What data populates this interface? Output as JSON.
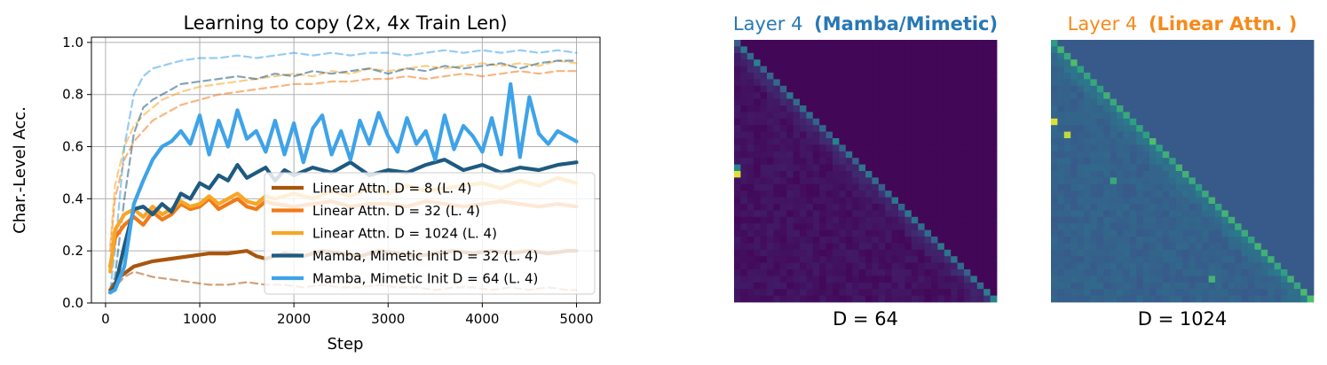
{
  "colors": {
    "linear_d8": "#a8560d",
    "linear_d32": "#f07a18",
    "linear_d1024": "#f7a626",
    "mamba_d32": "#1e5a80",
    "mamba_d64": "#3ea3e8",
    "title_mamba": "#2878b5",
    "title_linear": "#f58a1a",
    "heat_dark": "#440154",
    "heat_mid": "#31688e",
    "heat_light": "#fde725"
  },
  "chart_data": [
    {
      "type": "line",
      "title": "Learning to copy (2x, 4x Train Len)",
      "xlabel": "Step",
      "ylabel": "Char.-Level Acc.",
      "xlim": [
        -150,
        5250
      ],
      "ylim": [
        0.0,
        1.02
      ],
      "xticks": [
        0,
        1000,
        2000,
        3000,
        4000,
        5000
      ],
      "xtick_labels": [
        "0",
        "1000",
        "2000",
        "3000",
        "4000",
        "5000"
      ],
      "yticks": [
        0.0,
        0.2,
        0.4,
        0.6,
        0.8,
        1.0
      ],
      "ytick_labels": [
        "0.0",
        "0.2",
        "0.4",
        "0.6",
        "0.8",
        "1.0"
      ],
      "grid": true,
      "legend_placement": "lower-right",
      "series": [
        {
          "name": "Linear Attn. D = 8 (L. 4)",
          "style": "solid",
          "color_key": "linear_d8",
          "x": [
            50,
            150,
            300,
            500,
            700,
            900,
            1100,
            1300,
            1500,
            1600,
            1700,
            1900,
            2100,
            2300,
            2500,
            2700,
            2900,
            3100,
            3300,
            3500,
            3700,
            3900,
            4100,
            4300,
            4500,
            4700,
            4900,
            5000
          ],
          "y": [
            0.05,
            0.1,
            0.14,
            0.16,
            0.17,
            0.18,
            0.19,
            0.19,
            0.2,
            0.18,
            0.17,
            0.19,
            0.18,
            0.2,
            0.19,
            0.18,
            0.2,
            0.19,
            0.18,
            0.19,
            0.2,
            0.19,
            0.2,
            0.19,
            0.2,
            0.19,
            0.2,
            0.2
          ]
        },
        {
          "name": "Linear Attn. D = 32 (L. 4)",
          "style": "solid",
          "color_key": "linear_d32",
          "x": [
            50,
            100,
            200,
            300,
            400,
            500,
            600,
            700,
            800,
            900,
            1000,
            1100,
            1200,
            1300,
            1400,
            1500,
            1600,
            1700,
            1800,
            2000,
            2200,
            2400,
            2600,
            2800,
            3000,
            3200,
            3400,
            3600,
            3800,
            4000,
            4200,
            4400,
            4600,
            4800,
            5000
          ],
          "y": [
            0.14,
            0.25,
            0.3,
            0.33,
            0.3,
            0.35,
            0.32,
            0.34,
            0.38,
            0.36,
            0.37,
            0.4,
            0.36,
            0.38,
            0.4,
            0.37,
            0.36,
            0.39,
            0.38,
            0.37,
            0.38,
            0.39,
            0.37,
            0.38,
            0.38,
            0.37,
            0.39,
            0.38,
            0.37,
            0.38,
            0.39,
            0.38,
            0.37,
            0.38,
            0.37
          ]
        },
        {
          "name": "Linear Attn. D = 1024 (L. 4)",
          "style": "solid",
          "color_key": "linear_d1024",
          "x": [
            50,
            100,
            200,
            300,
            400,
            500,
            600,
            700,
            800,
            900,
            1000,
            1100,
            1200,
            1300,
            1400,
            1500,
            1600,
            1700,
            1800,
            2000,
            2200,
            2400,
            2600,
            2800,
            3000,
            3200,
            3400,
            3600,
            3800,
            4000,
            4200,
            4400,
            4600,
            4800,
            5000
          ],
          "y": [
            0.12,
            0.28,
            0.34,
            0.36,
            0.33,
            0.37,
            0.34,
            0.36,
            0.39,
            0.37,
            0.38,
            0.41,
            0.38,
            0.4,
            0.42,
            0.39,
            0.38,
            0.41,
            0.4,
            0.42,
            0.4,
            0.43,
            0.41,
            0.44,
            0.42,
            0.45,
            0.43,
            0.44,
            0.45,
            0.46,
            0.44,
            0.47,
            0.45,
            0.48,
            0.46
          ]
        },
        {
          "name": "Mamba, Mimetic Init D = 32 (L. 4)",
          "style": "solid",
          "color_key": "mamba_d32",
          "x": [
            50,
            100,
            200,
            300,
            400,
            500,
            600,
            700,
            800,
            900,
            1000,
            1100,
            1200,
            1300,
            1400,
            1500,
            1600,
            1700,
            1800,
            1900,
            2000,
            2200,
            2400,
            2600,
            2800,
            3000,
            3200,
            3400,
            3600,
            3800,
            4000,
            4200,
            4400,
            4600,
            4800,
            5000
          ],
          "y": [
            0.04,
            0.06,
            0.22,
            0.36,
            0.37,
            0.34,
            0.38,
            0.35,
            0.42,
            0.4,
            0.46,
            0.44,
            0.49,
            0.47,
            0.53,
            0.48,
            0.5,
            0.52,
            0.47,
            0.51,
            0.49,
            0.52,
            0.5,
            0.54,
            0.49,
            0.51,
            0.5,
            0.53,
            0.55,
            0.51,
            0.53,
            0.5,
            0.52,
            0.51,
            0.53,
            0.54
          ]
        },
        {
          "name": "Mamba, Mimetic Init D = 64 (L. 4)",
          "style": "solid",
          "color_key": "mamba_d64",
          "x": [
            50,
            100,
            200,
            300,
            400,
            500,
            600,
            700,
            800,
            900,
            1000,
            1100,
            1200,
            1300,
            1400,
            1500,
            1600,
            1700,
            1800,
            1900,
            2000,
            2100,
            2200,
            2300,
            2400,
            2500,
            2600,
            2700,
            2800,
            2900,
            3000,
            3100,
            3200,
            3300,
            3400,
            3500,
            3600,
            3700,
            3800,
            3900,
            4000,
            4100,
            4200,
            4300,
            4400,
            4500,
            4600,
            4700,
            4800,
            4900,
            5000
          ],
          "y": [
            0.04,
            0.05,
            0.14,
            0.38,
            0.47,
            0.55,
            0.6,
            0.62,
            0.66,
            0.61,
            0.72,
            0.57,
            0.7,
            0.6,
            0.74,
            0.63,
            0.66,
            0.58,
            0.7,
            0.57,
            0.69,
            0.54,
            0.67,
            0.72,
            0.57,
            0.66,
            0.55,
            0.7,
            0.61,
            0.73,
            0.64,
            0.58,
            0.71,
            0.61,
            0.66,
            0.55,
            0.72,
            0.59,
            0.68,
            0.64,
            0.58,
            0.71,
            0.57,
            0.84,
            0.56,
            0.79,
            0.65,
            0.61,
            0.66,
            0.64,
            0.62
          ]
        },
        {
          "name": "",
          "style": "dashed",
          "color_key": "linear_d8",
          "x": [
            50,
            100,
            200,
            300,
            400,
            500,
            700,
            900,
            1100,
            1300,
            1500,
            1700,
            1900,
            2100,
            2300,
            2500,
            2700,
            2900,
            3100,
            3300,
            3500,
            3700,
            3900,
            4100,
            4300,
            4500,
            4700,
            4900,
            5000
          ],
          "y": [
            0.04,
            0.06,
            0.1,
            0.12,
            0.11,
            0.1,
            0.09,
            0.08,
            0.07,
            0.07,
            0.08,
            0.07,
            0.07,
            0.06,
            0.07,
            0.06,
            0.06,
            0.07,
            0.06,
            0.06,
            0.05,
            0.06,
            0.06,
            0.05,
            0.06,
            0.05,
            0.06,
            0.05,
            0.05
          ]
        },
        {
          "name": "",
          "style": "dashed",
          "color_key": "linear_d32",
          "x": [
            50,
            100,
            200,
            300,
            400,
            500,
            600,
            800,
            1000,
            1200,
            1400,
            1600,
            1800,
            2000,
            2200,
            2400,
            2600,
            2800,
            3000,
            3200,
            3400,
            3600,
            3800,
            4000,
            4200,
            4400,
            4600,
            4800,
            5000
          ],
          "y": [
            0.2,
            0.4,
            0.55,
            0.62,
            0.66,
            0.7,
            0.72,
            0.76,
            0.78,
            0.8,
            0.81,
            0.82,
            0.83,
            0.84,
            0.84,
            0.85,
            0.85,
            0.86,
            0.86,
            0.87,
            0.86,
            0.87,
            0.88,
            0.87,
            0.88,
            0.89,
            0.88,
            0.89,
            0.89
          ]
        },
        {
          "name": "",
          "style": "dashed",
          "color_key": "linear_d1024",
          "x": [
            50,
            100,
            200,
            300,
            400,
            500,
            600,
            800,
            1000,
            1200,
            1400,
            1600,
            1800,
            2000,
            2200,
            2400,
            2600,
            2800,
            3000,
            3200,
            3400,
            3600,
            3800,
            4000,
            4200,
            4400,
            4600,
            4800,
            5000
          ],
          "y": [
            0.22,
            0.45,
            0.6,
            0.68,
            0.72,
            0.75,
            0.78,
            0.81,
            0.83,
            0.84,
            0.85,
            0.86,
            0.87,
            0.88,
            0.87,
            0.89,
            0.88,
            0.9,
            0.89,
            0.9,
            0.91,
            0.9,
            0.91,
            0.92,
            0.91,
            0.92,
            0.91,
            0.93,
            0.92
          ]
        },
        {
          "name": "",
          "style": "dashed",
          "color_key": "mamba_d32",
          "x": [
            50,
            100,
            200,
            300,
            400,
            500,
            600,
            700,
            800,
            1000,
            1200,
            1400,
            1600,
            1800,
            2000,
            2200,
            2400,
            2600,
            2800,
            3000,
            3200,
            3400,
            3600,
            3800,
            4000,
            4200,
            4400,
            4600,
            4800,
            5000
          ],
          "y": [
            0.05,
            0.1,
            0.4,
            0.65,
            0.75,
            0.78,
            0.8,
            0.82,
            0.84,
            0.85,
            0.86,
            0.87,
            0.86,
            0.88,
            0.87,
            0.89,
            0.88,
            0.89,
            0.9,
            0.88,
            0.9,
            0.89,
            0.91,
            0.9,
            0.91,
            0.92,
            0.9,
            0.92,
            0.93,
            0.93
          ]
        },
        {
          "name": "",
          "style": "dashed",
          "color_key": "mamba_d64",
          "x": [
            50,
            100,
            200,
            300,
            400,
            500,
            600,
            700,
            800,
            1000,
            1200,
            1400,
            1600,
            1800,
            2000,
            2200,
            2400,
            2600,
            2800,
            3000,
            3200,
            3400,
            3600,
            3800,
            4000,
            4200,
            4400,
            4600,
            4800,
            5000
          ],
          "y": [
            0.05,
            0.2,
            0.6,
            0.8,
            0.87,
            0.9,
            0.91,
            0.92,
            0.93,
            0.94,
            0.94,
            0.95,
            0.94,
            0.95,
            0.96,
            0.95,
            0.96,
            0.95,
            0.96,
            0.96,
            0.95,
            0.96,
            0.97,
            0.96,
            0.97,
            0.96,
            0.97,
            0.96,
            0.97,
            0.96
          ]
        }
      ]
    },
    {
      "type": "heatmap",
      "title": "Layer 4",
      "title_bold": "(Mamba/Mimetic)",
      "title_color_key": "title_mamba",
      "xlabel": "D = 64",
      "size": 40,
      "background": 0.02,
      "diagonal_value": 0.3,
      "peak_cells": [
        [
          20,
          0,
          0.95
        ],
        [
          19,
          0,
          0.45
        ]
      ],
      "color_scale": "viridis"
    },
    {
      "type": "heatmap",
      "title": "Layer 4",
      "title_bold": "(Linear Attn. )",
      "title_color_key": "title_linear",
      "xlabel": "D = 1024",
      "size": 40,
      "background": 0.28,
      "diagonal_value": 0.55,
      "peak_cells": [
        [
          12,
          0,
          0.95
        ],
        [
          14,
          2,
          0.9
        ],
        [
          21,
          9,
          0.6
        ],
        [
          36,
          24,
          0.65
        ]
      ],
      "color_scale": "viridis"
    }
  ]
}
